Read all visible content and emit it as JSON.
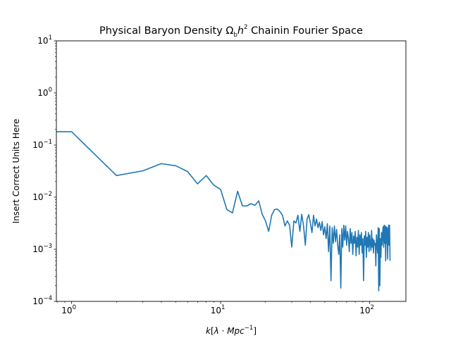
{
  "chart_data": {
    "type": "line",
    "title": "Physical Baryon Density Ωₕh² Chainin Fourier Space",
    "title_parts": {
      "main": "Physical Baryon Density ",
      "omega": "Ω",
      "sub": "b",
      "h": "h",
      "sup": "2",
      "rest": " Chainin Fourier Space"
    },
    "xlabel": "k[λ · Mpc⁻¹]",
    "xlabel_parts": {
      "k": "k",
      "bracket_open": "[",
      "lambda": "λ",
      "dot": " · ",
      "mpc": "Mpc",
      "exp": "−1",
      "bracket_close": "]"
    },
    "ylabel": "Insert Correct Units Here",
    "xscale": "log",
    "yscale": "log",
    "xlim": [
      0.79,
      175
    ],
    "ylim": [
      0.0001,
      10
    ],
    "x_ticks": [
      {
        "base": "10",
        "exp": "0",
        "value": 1
      },
      {
        "base": "10",
        "exp": "1",
        "value": 10
      },
      {
        "base": "10",
        "exp": "2",
        "value": 100
      }
    ],
    "y_ticks": [
      {
        "base": "10",
        "exp": "−4",
        "value": 0.0001
      },
      {
        "base": "10",
        "exp": "−3",
        "value": 0.001
      },
      {
        "base": "10",
        "exp": "−2",
        "value": 0.01
      },
      {
        "base": "10",
        "exp": "−1",
        "value": 0.1
      },
      {
        "base": "10",
        "exp": "0",
        "value": 1
      },
      {
        "base": "10",
        "exp": "1",
        "value": 10
      }
    ],
    "grid": false,
    "color": "#1f77b4",
    "series": [
      {
        "x": [
          0.79,
          1,
          2,
          3,
          4,
          5,
          6,
          7,
          8,
          9,
          10,
          11,
          12,
          13,
          14,
          15,
          16,
          17,
          18,
          19,
          20,
          21,
          22,
          23,
          24,
          25,
          26,
          27,
          28,
          29,
          30,
          31,
          32,
          33,
          34,
          35,
          36,
          37,
          38,
          39,
          40,
          41,
          42,
          43,
          44,
          45,
          46,
          47,
          48,
          49,
          50,
          51,
          52,
          53,
          54,
          55,
          56,
          57,
          58,
          59,
          60,
          61,
          62,
          63,
          64,
          65,
          66,
          67,
          68,
          69,
          70,
          71,
          72,
          73,
          74,
          75,
          76,
          77,
          78,
          79,
          80,
          81,
          82,
          83,
          84,
          85,
          86,
          87,
          88,
          89,
          90,
          91,
          92,
          93,
          94,
          95,
          96,
          97,
          98,
          99,
          100,
          101,
          102,
          103,
          104,
          105,
          106,
          107,
          108,
          109,
          110,
          111,
          112,
          113,
          114,
          115,
          116,
          117,
          118,
          119,
          120,
          121,
          122,
          123,
          124,
          125,
          126,
          127,
          128,
          129,
          130,
          131,
          132,
          133,
          134,
          135,
          136,
          137
        ],
        "y": [
          0.18,
          0.18,
          0.026,
          0.032,
          0.044,
          0.04,
          0.031,
          0.018,
          0.026,
          0.017,
          0.014,
          0.0058,
          0.005,
          0.013,
          0.0068,
          0.0068,
          0.0075,
          0.007,
          0.0085,
          0.0047,
          0.0035,
          0.0022,
          0.0045,
          0.0058,
          0.0059,
          0.0053,
          0.0045,
          0.0028,
          0.0035,
          0.0029,
          0.0011,
          0.0035,
          0.0032,
          0.0045,
          0.0022,
          0.0047,
          0.0028,
          0.0012,
          0.0038,
          0.0046,
          0.0032,
          0.0021,
          0.0045,
          0.0028,
          0.0038,
          0.0026,
          0.0033,
          0.0023,
          0.0034,
          0.0019,
          0.0027,
          0.0016,
          0.0031,
          0.0009,
          0.0028,
          0.00025,
          0.0026,
          0.0013,
          0.0028,
          0.0014,
          0.0024,
          0.0012,
          0.0008,
          0.0019,
          0.00018,
          0.0025,
          0.0011,
          0.0029,
          0.0015,
          0.0028,
          0.0012,
          0.0022,
          0.0016,
          0.0009,
          0.0025,
          0.0013,
          0.0021,
          0.0008,
          0.0018,
          0.0013,
          0.0022,
          0.00075,
          0.0017,
          0.0011,
          0.0023,
          0.0008,
          0.0019,
          0.0012,
          0.0021,
          0.00085,
          0.0016,
          0.00025,
          0.0018,
          0.0012,
          0.0022,
          0.0007,
          0.0017,
          0.0011,
          0.0021,
          0.0009,
          0.0019,
          0.0013,
          0.00095,
          0.0023,
          0.0011,
          0.0016,
          0.00085,
          0.0015,
          0.0012,
          0.0013,
          0.00048,
          0.0019,
          0.00125,
          0.00085,
          0.0026,
          0.00016,
          0.0025,
          0.0002,
          0.0016,
          0.0007,
          0.0021,
          0.0012,
          0.0019,
          0.0027,
          0.0011,
          0.0029,
          0.0013,
          0.0028,
          0.0006,
          0.0027,
          0.0013,
          0.0026,
          0.00065,
          0.0021,
          0.0029,
          0.0012,
          0.0029,
          0.0006
        ]
      }
    ]
  }
}
